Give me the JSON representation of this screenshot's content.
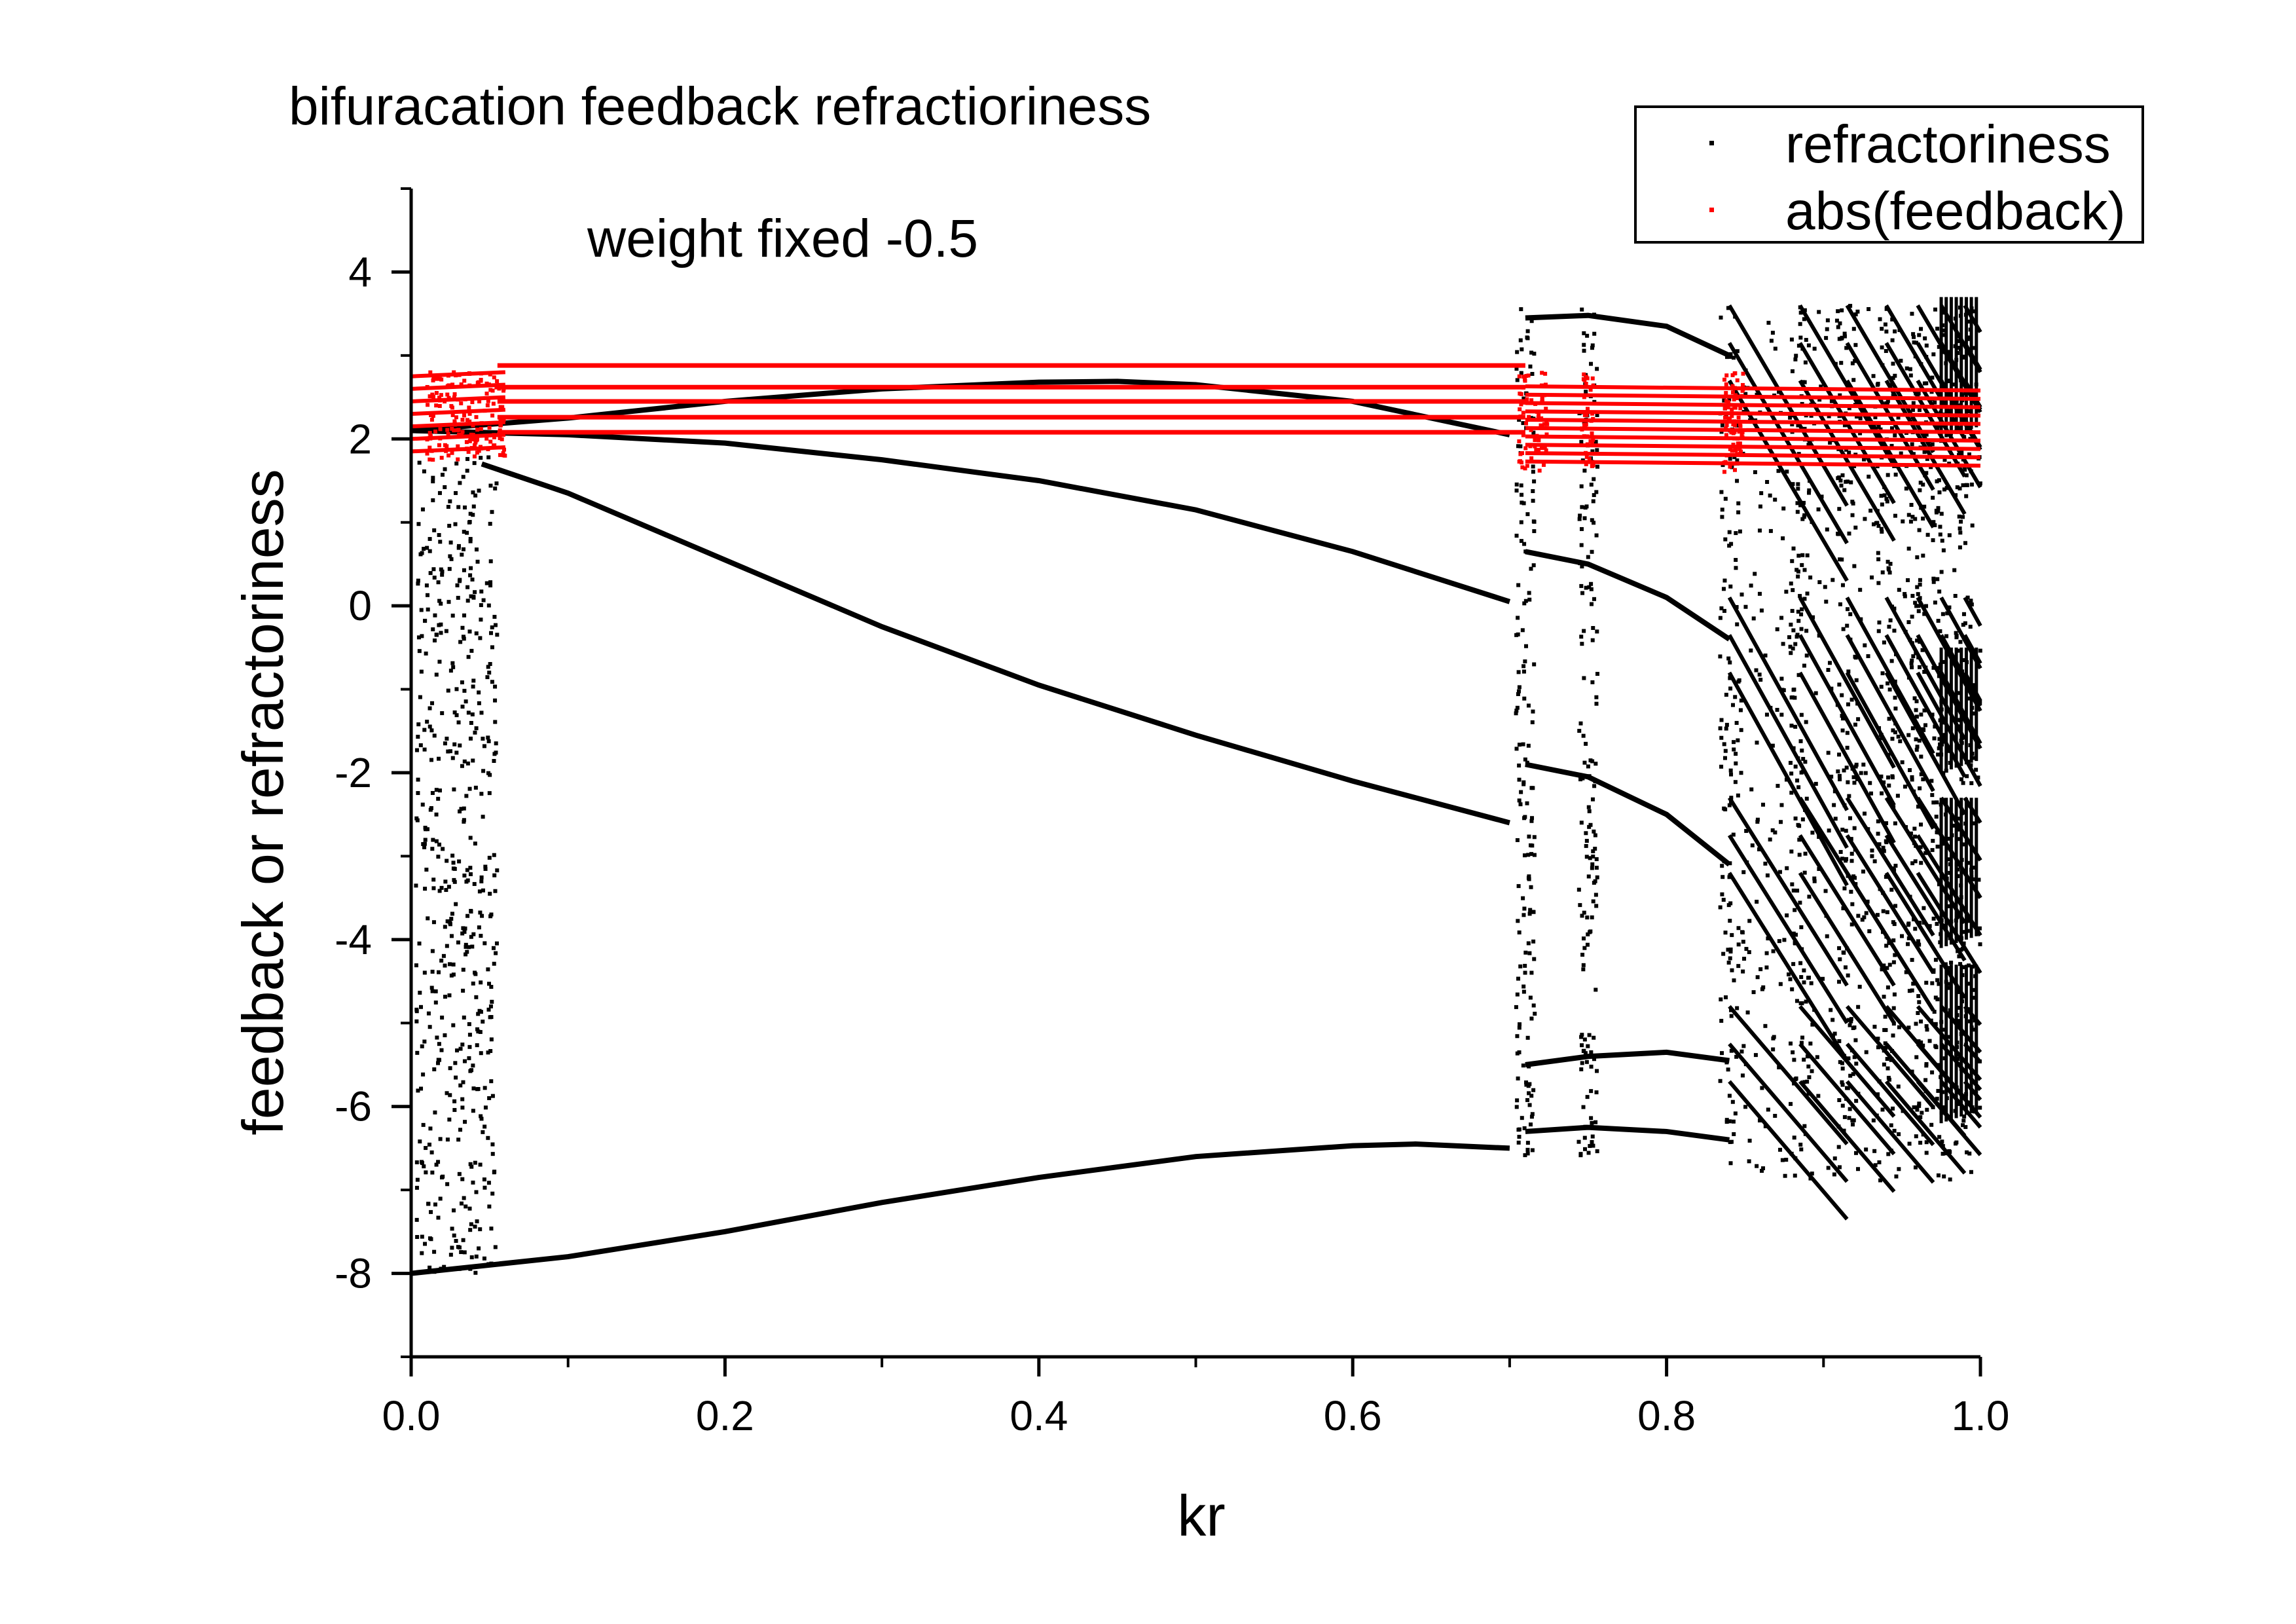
{
  "chart_data": {
    "type": "scatter",
    "title": "bifuracation feedback refractioriness",
    "annotation": "weight fixed -0.5",
    "xlabel": "kr",
    "ylabel": "feedback or refractoriness",
    "xlim": [
      0.0,
      1.0
    ],
    "ylim": [
      -9.0,
      5.0
    ],
    "x_ticks": [
      0.0,
      0.2,
      0.4,
      0.6,
      0.8,
      1.0
    ],
    "x_tick_labels": [
      "0.0",
      "0.2",
      "0.4",
      "0.6",
      "0.8",
      "1.0"
    ],
    "y_ticks": [
      4,
      2,
      0,
      -2,
      -4,
      -6,
      -8
    ],
    "y_tick_labels": [
      "4",
      "2",
      "0",
      "-2",
      "-4",
      "-6",
      "-8"
    ],
    "legend": {
      "placement": "top-right",
      "entries": [
        {
          "label": "refractoriness",
          "color": "#000000"
        },
        {
          "label": "abs(feedback)",
          "color": "#ff0000"
        }
      ]
    },
    "series": [
      {
        "name": "refractoriness",
        "color": "#000000",
        "branches": [
          {
            "x": [
              0.0,
              0.1,
              0.2,
              0.3,
              0.4,
              0.45,
              0.5,
              0.6,
              0.7
            ],
            "y": [
              2.1,
              2.25,
              2.45,
              2.6,
              2.68,
              2.69,
              2.65,
              2.45,
              2.05
            ]
          },
          {
            "x": [
              0.045,
              0.1,
              0.2,
              0.3,
              0.4,
              0.5,
              0.6,
              0.7
            ],
            "y": [
              1.7,
              1.35,
              0.55,
              -0.25,
              -0.95,
              -1.55,
              -2.1,
              -2.6
            ]
          },
          {
            "x": [
              0.0,
              0.1,
              0.2,
              0.3,
              0.4,
              0.5,
              0.6,
              0.7
            ],
            "y": [
              2.1,
              2.05,
              1.95,
              1.75,
              1.5,
              1.15,
              0.65,
              0.05
            ]
          },
          {
            "x": [
              0.0,
              0.1,
              0.2,
              0.3,
              0.4,
              0.5,
              0.6,
              0.64,
              0.7
            ],
            "y": [
              -8.0,
              -7.8,
              -7.5,
              -7.15,
              -6.85,
              -6.6,
              -6.47,
              -6.45,
              -6.5
            ]
          },
          {
            "x": [
              0.71,
              0.75,
              0.8,
              0.84
            ],
            "y": [
              3.45,
              3.48,
              3.35,
              3.0
            ]
          },
          {
            "x": [
              0.71,
              0.75,
              0.8,
              0.84
            ],
            "y": [
              0.65,
              0.5,
              0.1,
              -0.4
            ]
          },
          {
            "x": [
              0.71,
              0.75,
              0.8,
              0.84
            ],
            "y": [
              -1.9,
              -2.05,
              -2.5,
              -3.1
            ]
          },
          {
            "x": [
              0.71,
              0.75,
              0.8,
              0.84
            ],
            "y": [
              -5.5,
              -5.4,
              -5.35,
              -5.45
            ]
          },
          {
            "x": [
              0.71,
              0.75,
              0.8,
              0.84
            ],
            "y": [
              -6.3,
              -6.25,
              -6.3,
              -6.4
            ]
          }
        ]
      },
      {
        "name": "abs(feedback)",
        "color": "#ff0000",
        "levels": [
          2.88,
          2.62,
          2.45,
          2.26,
          2.08
        ],
        "chaotic_band": [
          1.75,
          2.8
        ],
        "end_band": [
          1.6,
          2.6
        ]
      }
    ],
    "periodic_windows": [
      0.71,
      0.75,
      0.84,
      0.885,
      0.915,
      0.94,
      0.96,
      0.975,
      0.99
    ]
  }
}
